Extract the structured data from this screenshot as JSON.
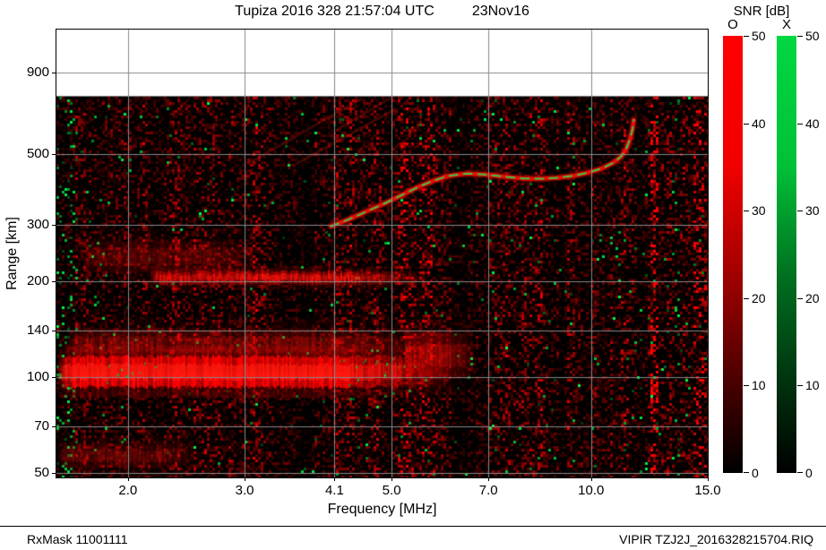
{
  "header": {
    "title": "Tupiza 2016 328 21:57:04 UTC",
    "date": "23Nov16",
    "colorbar_title": "SNR [dB]",
    "o_label": "O",
    "x_label": "X"
  },
  "axes": {
    "xlabel": "Frequency [MHz]",
    "ylabel": "Range [km]"
  },
  "footer": {
    "left": "RxMask 11001111",
    "right": "VIPIR  TZJ2J_2016328215704.RIQ"
  },
  "colorbar": {
    "label": "SNR [dB]",
    "min": 0,
    "max": 50,
    "ticks": [
      0,
      10,
      20,
      30,
      40,
      50
    ],
    "o_top_color": "#ff0000",
    "x_top_color": "#00cc33",
    "bottom_color": "#000000"
  },
  "chart_data": {
    "type": "heatmap",
    "title": "Tupiza 2016 328 21:57:04 UTC 23Nov16",
    "xlabel": "Frequency [MHz]",
    "ylabel": "Range [km]",
    "x_scale": "log",
    "y_scale": "log",
    "grid": true,
    "legend_position": "right",
    "x_range_mhz": [
      1.56,
      15.0
    ],
    "y_range_km": [
      48.5,
      1230
    ],
    "data_region_top_km": 760,
    "x_ticks": [
      2.0,
      3.0,
      4.1,
      5.0,
      7.0,
      10.0,
      15.0
    ],
    "x_tick_labels": [
      "2.0",
      "3.0",
      "4.1",
      "5.0",
      "7.0",
      "10.0",
      "15.0"
    ],
    "y_ticks": [
      900,
      500,
      300,
      200,
      140,
      100,
      70,
      50
    ],
    "y_tick_labels": [
      "900",
      "500",
      "300",
      "200",
      "140",
      "100",
      "70",
      "50"
    ],
    "snr_range_db": [
      0,
      50
    ],
    "layers": [
      {
        "name": "E-region echo",
        "f": [
          1.56,
          6.15
        ],
        "km": [
          93,
          116
        ],
        "amp": 0.95,
        "green_zones": [
          [
            1.85,
            2.2
          ],
          [
            4.15,
            4.95
          ]
        ]
      },
      {
        "name": "E-region diffuse top",
        "f": [
          1.6,
          6.5
        ],
        "km": [
          113,
          142
        ],
        "amp": 0.2
      },
      {
        "name": "E-region second multiple",
        "f": [
          2.15,
          5.7
        ],
        "km": [
          196,
          215
        ],
        "amp": 0.5
      },
      {
        "name": "low-F diffuse scatter",
        "f": [
          1.7,
          3.25
        ],
        "km": [
          212,
          268
        ],
        "amp": 0.14
      },
      {
        "name": "diffuse patch 5-7 MHz",
        "f": [
          5.2,
          6.7
        ],
        "km": [
          100,
          138
        ],
        "amp": 0.26
      },
      {
        "name": "bottom scatter",
        "f": [
          1.56,
          2.6
        ],
        "km": [
          52,
          62
        ],
        "amp": 0.16
      }
    ],
    "f_trace": {
      "name": "F-layer O-trace with X fringe",
      "snr_db": 45,
      "points_mhz_km": [
        [
          4.05,
          297
        ],
        [
          4.3,
          312
        ],
        [
          4.6,
          332
        ],
        [
          4.9,
          352
        ],
        [
          5.2,
          374
        ],
        [
          5.5,
          396
        ],
        [
          5.8,
          414
        ],
        [
          6.1,
          428
        ],
        [
          6.5,
          435
        ],
        [
          6.9,
          432
        ],
        [
          7.4,
          425
        ],
        [
          7.9,
          420
        ],
        [
          8.4,
          419
        ],
        [
          8.9,
          422
        ],
        [
          9.4,
          428
        ],
        [
          9.9,
          438
        ],
        [
          10.4,
          452
        ],
        [
          10.8,
          470
        ],
        [
          11.1,
          492
        ],
        [
          11.3,
          520
        ],
        [
          11.45,
          558
        ],
        [
          11.55,
          600
        ],
        [
          11.6,
          640
        ]
      ]
    },
    "faint_streaks": [
      {
        "from": [
          3.05,
          470
        ],
        "to": [
          4.5,
          745
        ]
      },
      {
        "from": [
          3.6,
          468
        ],
        "to": [
          5.05,
          690
        ]
      },
      {
        "from": [
          4.15,
          600
        ],
        "to": [
          5.2,
          790
        ]
      }
    ],
    "noise_columns": [
      {
        "f": [
          1.56,
          1.68
        ],
        "color": "green",
        "strength": 0.1
      },
      {
        "f": [
          6.15,
          6.5
        ],
        "color": "dark",
        "strength": 0.3
      },
      {
        "f": [
          8.9,
          9.2
        ],
        "color": "dark",
        "strength": 0.5
      },
      {
        "f": [
          12.25,
          12.62
        ],
        "color": "red",
        "strength": 1.7
      },
      {
        "f": [
          13.15,
          13.5
        ],
        "color": "green",
        "strength": 0.06
      },
      {
        "f": [
          14.15,
          14.95
        ],
        "color": "red",
        "strength": 1.15
      }
    ]
  }
}
